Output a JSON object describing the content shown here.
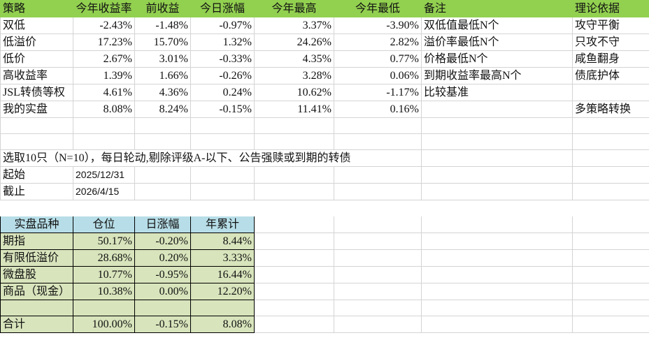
{
  "header": [
    "策略",
    "今年收益率",
    "前收益",
    "今日涨幅",
    "今年最高",
    "今年最低",
    "备注",
    "理论依据"
  ],
  "strategies": [
    [
      "双低",
      "-2.43%",
      "-1.48%",
      "-0.97%",
      "3.37%",
      "-3.90%",
      "双低值最低N个",
      "攻守平衡"
    ],
    [
      "低溢价",
      "17.23%",
      "15.70%",
      "1.32%",
      "24.26%",
      "2.82%",
      "溢价率最低N个",
      "只攻不守"
    ],
    [
      "低价",
      "2.67%",
      "3.01%",
      "-0.33%",
      "4.35%",
      "0.77%",
      "价格最低N个",
      "咸鱼翻身"
    ],
    [
      "高收益率",
      "1.39%",
      "1.66%",
      "-0.26%",
      "3.28%",
      "0.06%",
      "到期收益率最高N个",
      "债底护体"
    ],
    [
      "JSL转债等权",
      "4.61%",
      "4.36%",
      "0.24%",
      "10.62%",
      "-1.17%",
      "比较基准",
      ""
    ],
    [
      "我的实盘",
      "8.08%",
      "8.24%",
      "-0.15%",
      "11.41%",
      "0.16%",
      "",
      "多策略转换"
    ]
  ],
  "note": "选取10只（N=10），每日轮动,剔除评级A-以下、公告强赎或到期的转债",
  "start": {
    "label": "起始",
    "value": "2025/12/31"
  },
  "end": {
    "label": "截止",
    "value": "2026/4/15"
  },
  "portfolio": {
    "header": [
      "实盘品种",
      "仓位",
      "日涨幅",
      "年累计"
    ],
    "rows": [
      [
        "期指",
        "50.17%",
        "-0.20%",
        "8.44%"
      ],
      [
        "有限低溢价",
        "28.68%",
        "0.20%",
        "3.33%"
      ],
      [
        "微盘股",
        "10.77%",
        "-0.95%",
        "16.44%"
      ],
      [
        "商品（现金）",
        "10.38%",
        "0.00%",
        "12.20%"
      ],
      [
        "",
        "",
        "",
        ""
      ],
      [
        "合计",
        "100.00%",
        "-0.15%",
        "8.08%"
      ]
    ]
  },
  "colors": {
    "header_green": "#92d050",
    "sub_header_blue": "#b7dee8",
    "sub_body_green": "#d8e4bc"
  }
}
